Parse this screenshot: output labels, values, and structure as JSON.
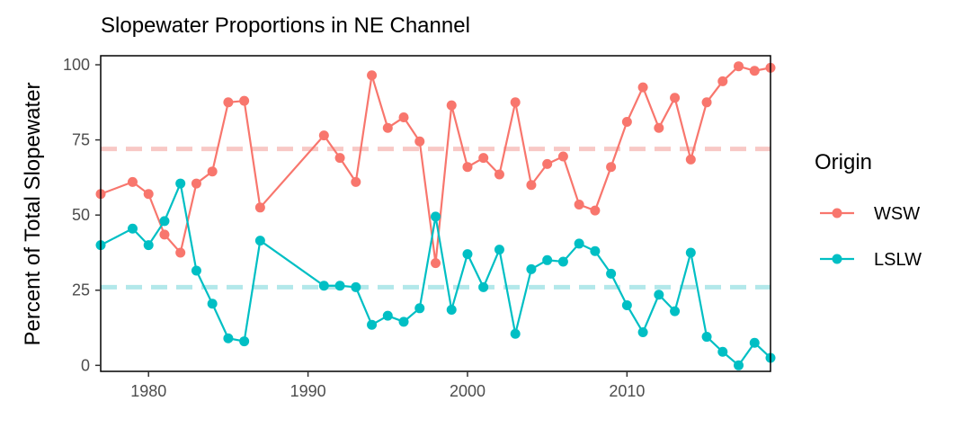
{
  "chart_data": {
    "type": "line",
    "title": "Slopewater Proportions in NE Channel",
    "xlabel": "",
    "ylabel": "Percent of Total Slopewater",
    "xlim": [
      1977,
      2019
    ],
    "ylim": [
      -2,
      103
    ],
    "x_ticks": [
      1980,
      1990,
      2000,
      2010
    ],
    "y_ticks": [
      0,
      25,
      50,
      75,
      100
    ],
    "grid": false,
    "legend_title": "Origin",
    "legend_position": "right",
    "series": [
      {
        "name": "WSW",
        "color": "#F8766D",
        "mean_line": 72,
        "mean_color": "#F8C8C5",
        "points": [
          [
            1977,
            57
          ],
          [
            1979,
            61
          ],
          [
            1980,
            57
          ],
          [
            1981,
            43.5
          ],
          [
            1982,
            37.5
          ],
          [
            1983,
            60.5
          ],
          [
            1984,
            64.5
          ],
          [
            1985,
            87.5
          ],
          [
            1986,
            88
          ],
          [
            1987,
            52.5
          ],
          [
            1991,
            76.5
          ],
          [
            1992,
            69
          ],
          [
            1993,
            61
          ],
          [
            1994,
            96.5
          ],
          [
            1995,
            79
          ],
          [
            1996,
            82.5
          ],
          [
            1997,
            74.5
          ],
          [
            1998,
            34
          ],
          [
            1999,
            86.5
          ],
          [
            2000,
            66
          ],
          [
            2001,
            69
          ],
          [
            2002,
            63.5
          ],
          [
            2003,
            87.5
          ],
          [
            2004,
            60
          ],
          [
            2005,
            67
          ],
          [
            2006,
            69.5
          ],
          [
            2007,
            53.5
          ],
          [
            2008,
            51.5
          ],
          [
            2009,
            66
          ],
          [
            2010,
            81
          ],
          [
            2011,
            92.5
          ],
          [
            2012,
            79
          ],
          [
            2013,
            89
          ],
          [
            2014,
            68.5
          ],
          [
            2015,
            87.5
          ],
          [
            2016,
            94.5
          ],
          [
            2017,
            99.5
          ],
          [
            2018,
            98
          ],
          [
            2019,
            99
          ]
        ]
      },
      {
        "name": "LSLW",
        "color": "#00BFC4",
        "mean_line": 26,
        "mean_color": "#B2E8EA",
        "points": [
          [
            1977,
            40
          ],
          [
            1979,
            45.5
          ],
          [
            1980,
            40
          ],
          [
            1981,
            48
          ],
          [
            1982,
            60.5
          ],
          [
            1983,
            31.5
          ],
          [
            1984,
            20.5
          ],
          [
            1985,
            9
          ],
          [
            1986,
            8
          ],
          [
            1987,
            41.5
          ],
          [
            1991,
            26.5
          ],
          [
            1992,
            26.5
          ],
          [
            1993,
            26
          ],
          [
            1994,
            13.5
          ],
          [
            1995,
            16.5
          ],
          [
            1996,
            14.5
          ],
          [
            1997,
            19
          ],
          [
            1998,
            49.5
          ],
          [
            1999,
            18.5
          ],
          [
            2000,
            37
          ],
          [
            2001,
            26
          ],
          [
            2002,
            38.5
          ],
          [
            2003,
            10.5
          ],
          [
            2004,
            32
          ],
          [
            2005,
            35
          ],
          [
            2006,
            34.5
          ],
          [
            2007,
            40.5
          ],
          [
            2008,
            38
          ],
          [
            2009,
            30.5
          ],
          [
            2010,
            20
          ],
          [
            2011,
            11
          ],
          [
            2012,
            23.5
          ],
          [
            2013,
            18
          ],
          [
            2014,
            37.5
          ],
          [
            2015,
            9.5
          ],
          [
            2016,
            4.5
          ],
          [
            2017,
            0
          ],
          [
            2018,
            7.5
          ],
          [
            2019,
            2.5
          ]
        ]
      }
    ]
  }
}
